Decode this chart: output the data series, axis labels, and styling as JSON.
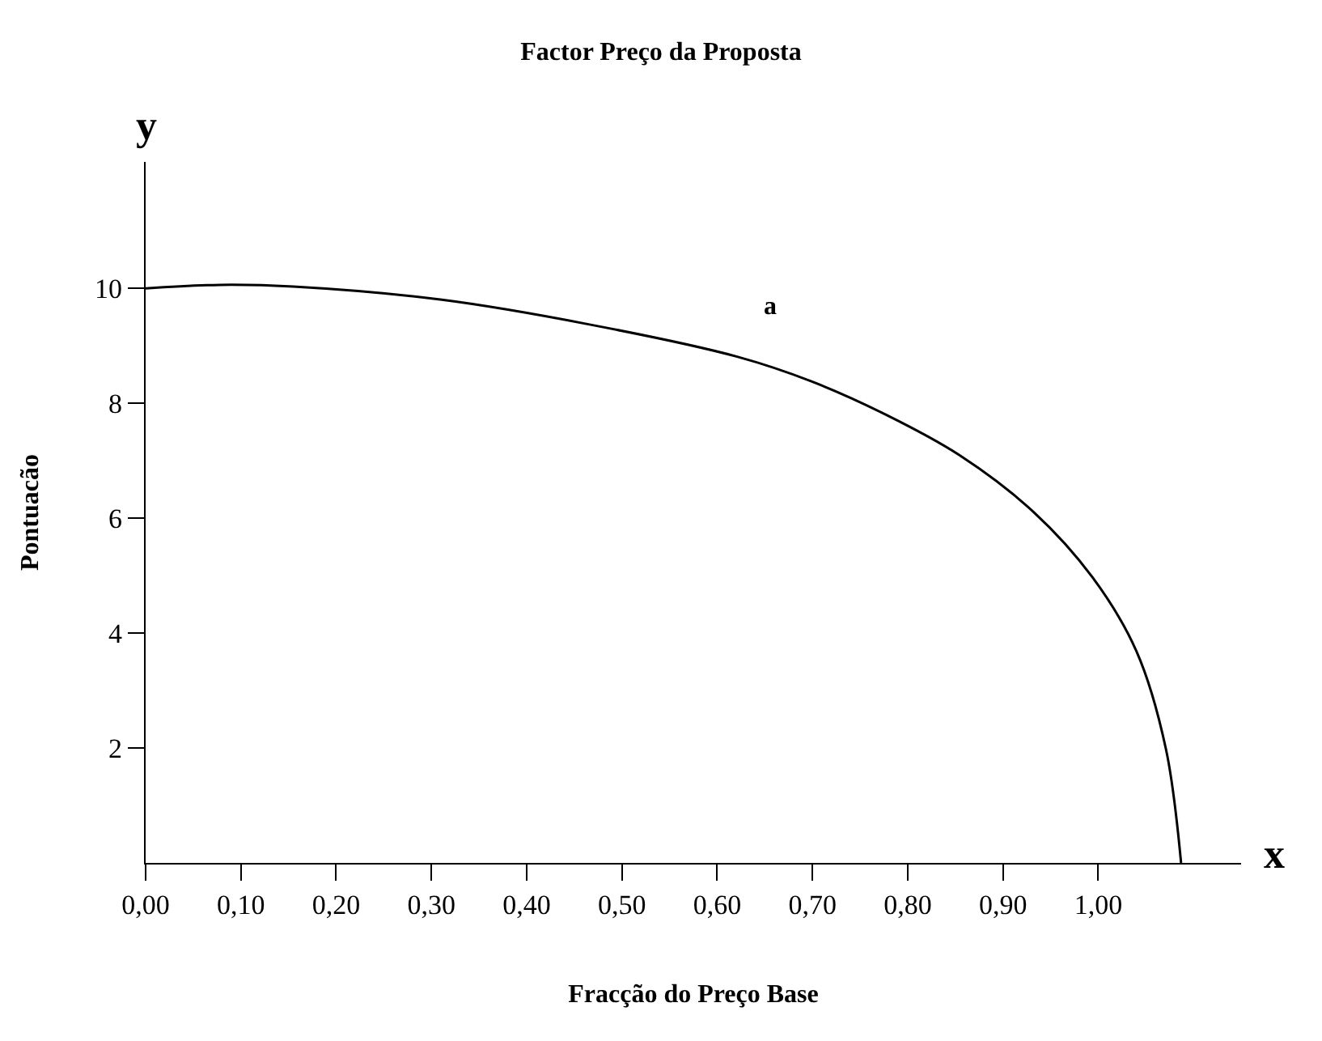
{
  "chart_data": {
    "type": "line",
    "title": "Factor Preço da Proposta",
    "xlabel": "Fracção do Preço Base",
    "ylabel": "Pontuacão",
    "annotations": [
      "a",
      "x",
      "y"
    ],
    "x": [
      0,
      0.078,
      0.155,
      0.311,
      0.466,
      0.621,
      0.699,
      0.776,
      0.854,
      0.932,
      0.994,
      1.04,
      1.071,
      1.087
    ],
    "series": [
      {
        "color": "#000000",
        "values": [
          10.0,
          10.06,
          10.03,
          9.8,
          9.37,
          8.81,
          8.38,
          7.81,
          7.1,
          6.11,
          4.97,
          3.69,
          1.99,
          0
        ]
      }
    ],
    "xlim": [
      0,
      1.15
    ],
    "ylim": [
      0,
      12.2
    ],
    "xticks": [
      {
        "value": 0,
        "label": "0,00"
      },
      {
        "value": 0.1,
        "label": "0,10"
      },
      {
        "value": 0.2,
        "label": "0,20"
      },
      {
        "value": 0.3,
        "label": "0,30"
      },
      {
        "value": 0.4,
        "label": "0,40"
      },
      {
        "value": 0.5,
        "label": "0,50"
      },
      {
        "value": 0.6,
        "label": "0,60"
      },
      {
        "value": 0.7,
        "label": "0,70"
      },
      {
        "value": 0.8,
        "label": "0,80"
      },
      {
        "value": 0.9,
        "label": "0,90"
      },
      {
        "value": 1.0,
        "label": "1,00"
      }
    ],
    "yticks": [
      2,
      4,
      6,
      8,
      10
    ],
    "marker": "none",
    "line_style": "solid"
  }
}
